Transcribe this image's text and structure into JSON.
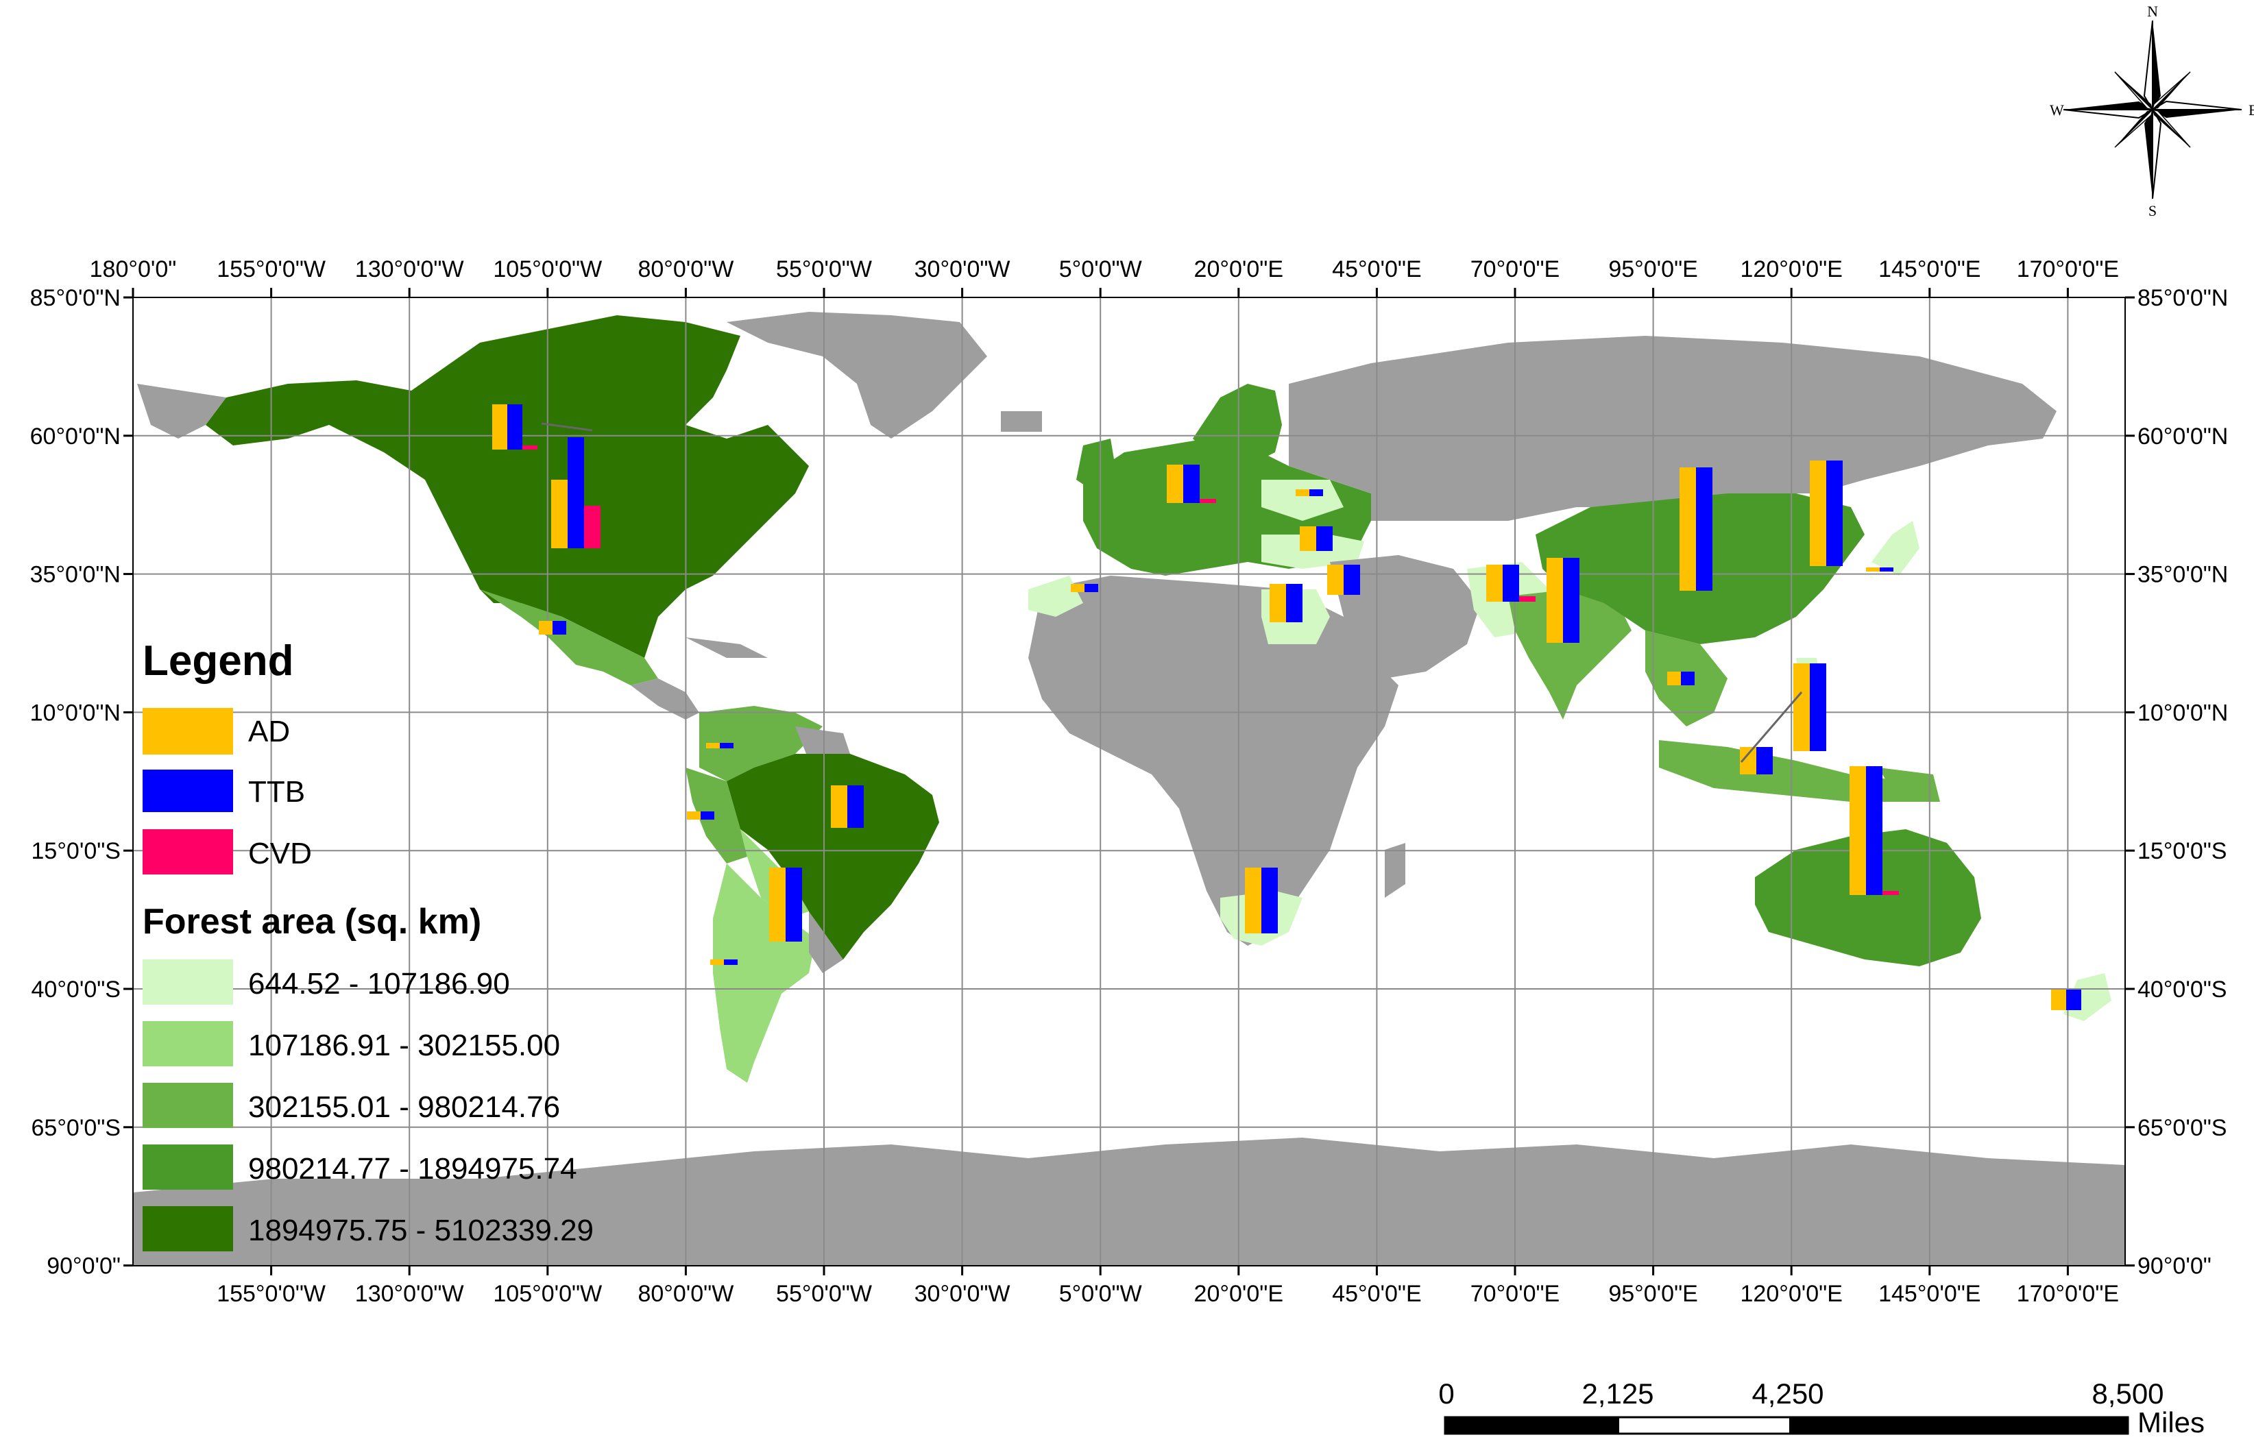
{
  "axes": {
    "top_labels": [
      "180°0'0\"",
      "155°0'0\"W",
      "130°0'0\"W",
      "105°0'0\"W",
      "80°0'0\"W",
      "55°0'0\"W",
      "30°0'0\"W",
      "5°0'0\"W",
      "20°0'0\"E",
      "45°0'0\"E",
      "70°0'0\"E",
      "95°0'0\"E",
      "120°0'0\"E",
      "145°0'0\"E",
      "170°0'0\"E"
    ],
    "bottom_labels": [
      "155°0'0\"W",
      "130°0'0\"W",
      "105°0'0\"W",
      "80°0'0\"W",
      "55°0'0\"W",
      "30°0'0\"W",
      "5°0'0\"W",
      "20°0'0\"E",
      "45°0'0\"E",
      "70°0'0\"E",
      "95°0'0\"E",
      "120°0'0\"E",
      "145°0'0\"E",
      "170°0'0\"E"
    ],
    "left_labels": [
      "85°0'0\"N",
      "60°0'0\"N",
      "35°0'0\"N",
      "10°0'0\"N",
      "15°0'0\"S",
      "40°0'0\"S",
      "65°0'0\"S",
      "90°0'0\""
    ],
    "right_labels": [
      "85°0'0\"N",
      "60°0'0\"N",
      "35°0'0\"N",
      "10°0'0\"N",
      "15°0'0\"S",
      "40°0'0\"S",
      "65°0'0\"S",
      "90°0'0\""
    ]
  },
  "legend": {
    "title": "Legend",
    "series": [
      {
        "label": "AD",
        "color": "#FFC000"
      },
      {
        "label": "TTB",
        "color": "#0000FF"
      },
      {
        "label": "CVD",
        "color": "#FF0066"
      }
    ],
    "forest_title": "Forest area (sq. km)",
    "forest_classes": [
      {
        "label": "644.52 - 107186.90",
        "color": "#D4F8C4"
      },
      {
        "label": "107186.91 - 302155.00",
        "color": "#9ADB7A"
      },
      {
        "label": "302155.01 - 980214.76",
        "color": "#6BB347"
      },
      {
        "label": "980214.77 - 1894975.74",
        "color": "#4A9A2A"
      },
      {
        "label": "1894975.75 - 5102339.29",
        "color": "#2D7500"
      }
    ],
    "nodata_color": "#9E9E9E"
  },
  "scale_bar": {
    "ticks": [
      "0",
      "2,125",
      "4,250",
      "8,500"
    ],
    "unit": "Miles"
  },
  "compass": {
    "n": "N",
    "s": "S",
    "e": "E",
    "w": "W"
  }
}
